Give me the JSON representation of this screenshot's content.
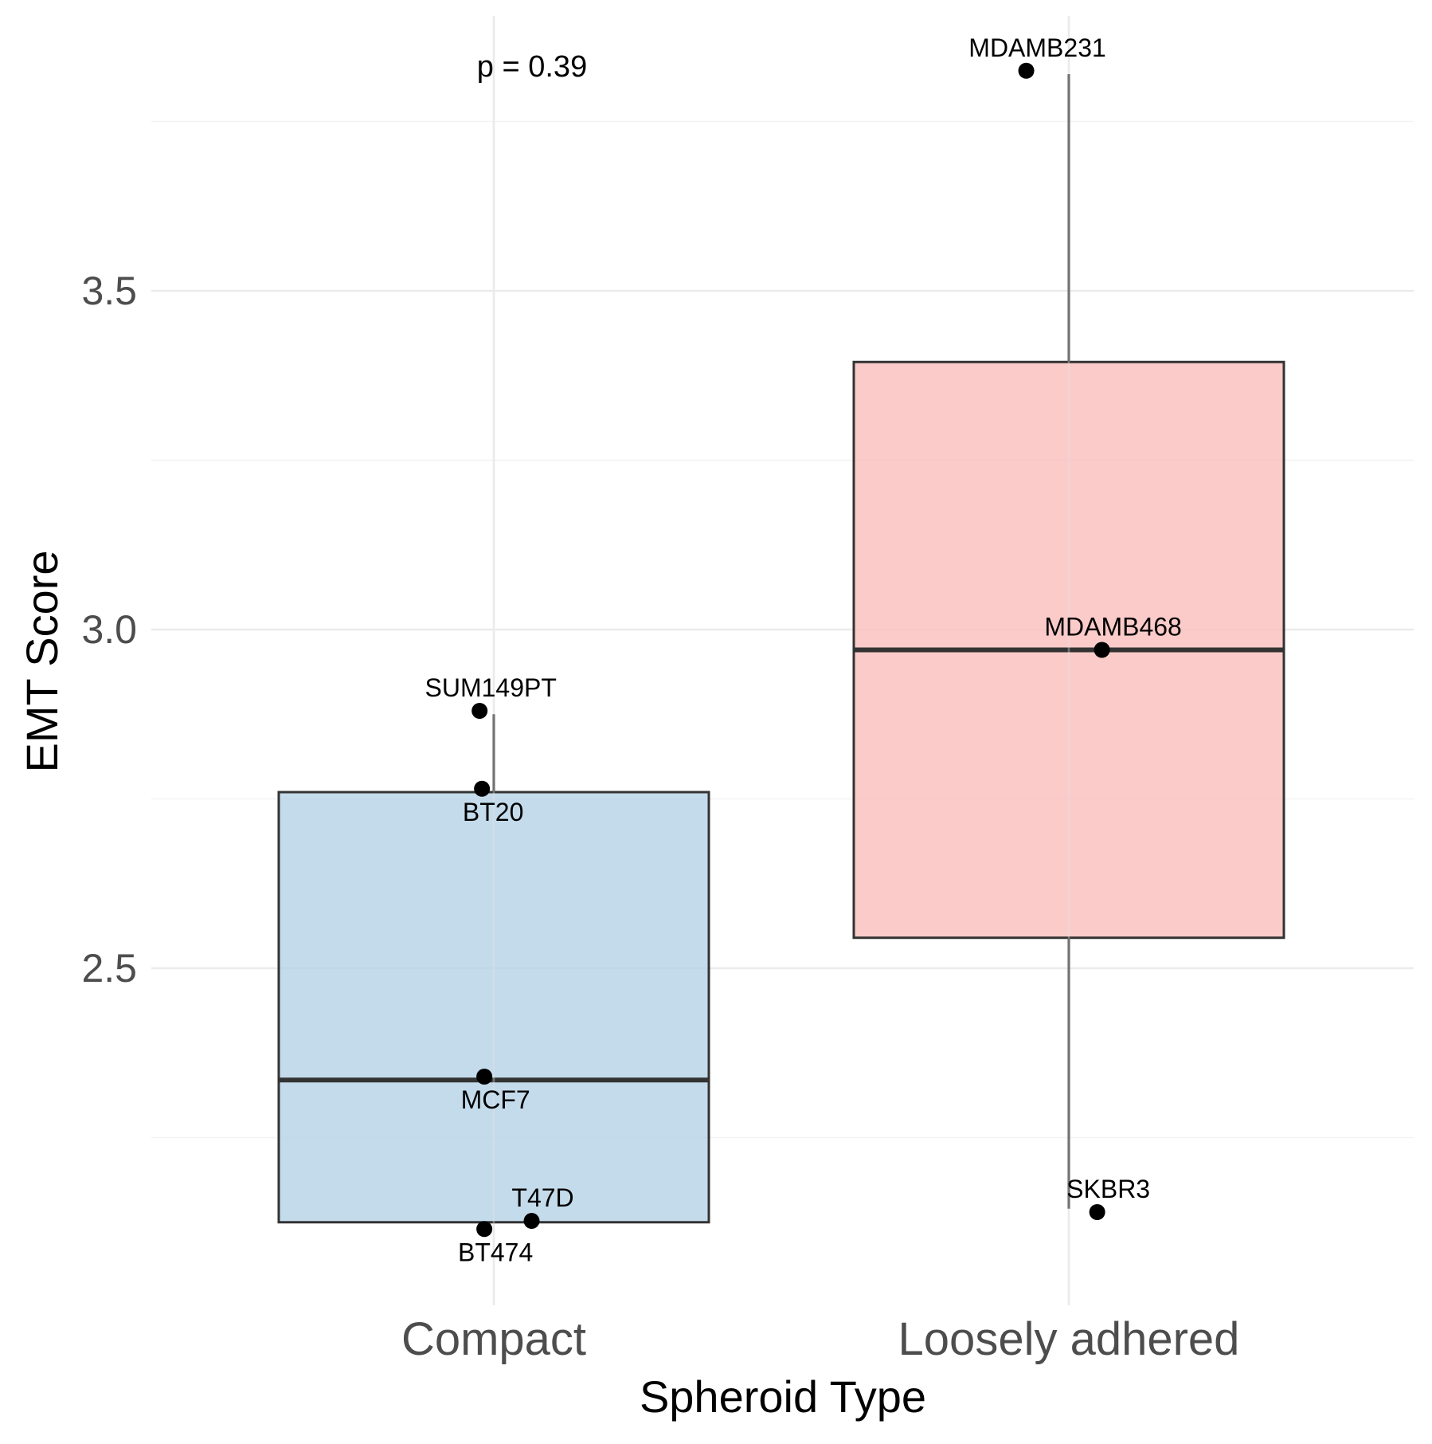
{
  "chart_data": {
    "type": "boxplot",
    "title": "",
    "xlabel": "Spheroid Type",
    "ylabel": "EMT Score",
    "ylim": [
      2.04,
      3.9
    ],
    "yticks": [
      2.5,
      3.0,
      3.5
    ],
    "ytick_labels": [
      "2.5",
      "3.0",
      "3.5"
    ],
    "grid": true,
    "categories": [
      "Compact",
      "Loosely adhered"
    ],
    "boxes": [
      {
        "name": "Compact",
        "color": "#b3d1e6",
        "q1": 2.125,
        "median": 2.335,
        "q3": 2.76,
        "whisker_low": 2.125,
        "whisker_high": 2.875
      },
      {
        "name": "Loosely adhered",
        "color": "#f8bcba",
        "q1": 2.545,
        "median": 2.97,
        "q3": 3.395,
        "whisker_low": 2.145,
        "whisker_high": 3.82
      }
    ],
    "points": [
      {
        "label": "SUM149PT",
        "group": "Compact",
        "jitter": -0.03,
        "value": 2.88,
        "label_pos": "above"
      },
      {
        "label": "BT20",
        "group": "Compact",
        "jitter": -0.025,
        "value": 2.765,
        "label_pos": "below"
      },
      {
        "label": "MCF7",
        "group": "Compact",
        "jitter": -0.02,
        "value": 2.34,
        "label_pos": "below"
      },
      {
        "label": "T47D",
        "group": "Compact",
        "jitter": 0.08,
        "value": 2.127,
        "label_pos": "above"
      },
      {
        "label": "BT474",
        "group": "Compact",
        "jitter": -0.02,
        "value": 2.115,
        "label_pos": "below"
      },
      {
        "label": "MDAMB231",
        "group": "Loosely adhered",
        "jitter": -0.09,
        "value": 3.825,
        "label_pos": "above"
      },
      {
        "label": "MDAMB468",
        "group": "Loosely adhered",
        "jitter": 0.07,
        "value": 2.97,
        "label_pos": "above"
      },
      {
        "label": "SKBR3",
        "group": "Loosely adhered",
        "jitter": 0.06,
        "value": 2.14,
        "label_pos": "above"
      }
    ],
    "annotation": "p = 0.39"
  }
}
